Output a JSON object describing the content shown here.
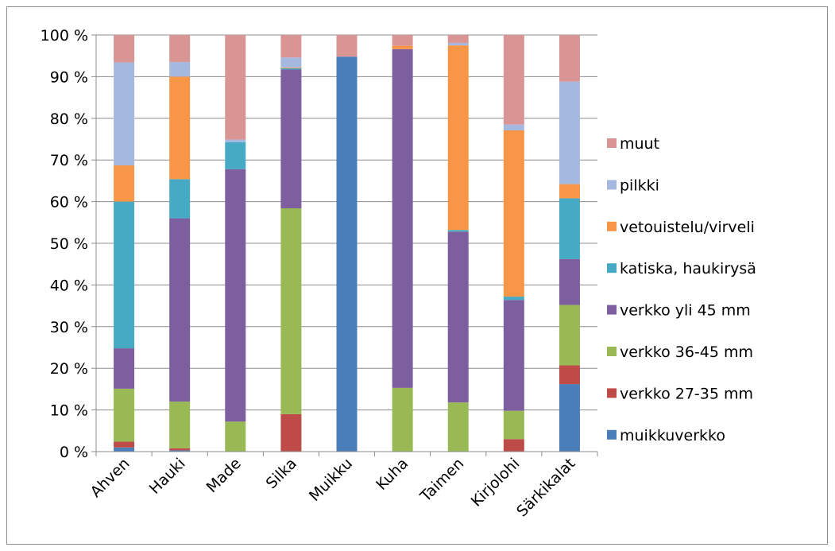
{
  "chart_data": {
    "type": "bar",
    "stacked": true,
    "percent_scale": true,
    "categories": [
      "Ahven",
      "Hauki",
      "Made",
      "Silka",
      "Muikku",
      "Kuha",
      "Taimen",
      "Kirjolohi",
      "Särkikalat"
    ],
    "y_ticks": [
      "0 %",
      "10 %",
      "20 %",
      "30 %",
      "40 %",
      "50 %",
      "60 %",
      "70 %",
      "80 %",
      "90 %",
      "100 %"
    ],
    "ylim": [
      0,
      100
    ],
    "legend_position": "right",
    "grid": true,
    "series": [
      {
        "name": "muikkuverkko",
        "color": "#4a7ebb",
        "values": [
          1.0,
          0.3,
          0,
          0,
          94.8,
          0,
          0,
          0,
          16.2
        ]
      },
      {
        "name": "verkko 27-35 mm",
        "color": "#be4b48",
        "values": [
          1.4,
          0.5,
          0,
          9.0,
          0,
          0,
          0,
          3.0,
          4.5
        ]
      },
      {
        "name": "verkko 36-45 mm",
        "color": "#98b954",
        "values": [
          12.7,
          11.2,
          7.2,
          49.4,
          0,
          15.3,
          11.8,
          6.8,
          14.5
        ]
      },
      {
        "name": "verkko yli 45 mm",
        "color": "#7d5fa0",
        "values": [
          9.7,
          44.0,
          60.6,
          33.3,
          0,
          81.3,
          41.0,
          26.6,
          11.0
        ]
      },
      {
        "name": "katiska, haukirysä",
        "color": "#46aac5",
        "values": [
          35.2,
          9.4,
          6.5,
          0.3,
          0,
          0,
          0.4,
          0.8,
          14.6
        ]
      },
      {
        "name": "vetouistelu/virveli",
        "color": "#f79646",
        "values": [
          8.7,
          24.6,
          0,
          0.2,
          0,
          0.8,
          44.3,
          39.9,
          3.4
        ]
      },
      {
        "name": "pilkki",
        "color": "#a5b9e0",
        "values": [
          24.7,
          3.5,
          0.6,
          2.4,
          0,
          0,
          0.6,
          1.4,
          24.6
        ]
      },
      {
        "name": "muut",
        "color": "#d99594",
        "values": [
          6.6,
          6.5,
          25.1,
          5.4,
          5.2,
          2.6,
          1.9,
          21.5,
          11.2
        ]
      }
    ]
  }
}
